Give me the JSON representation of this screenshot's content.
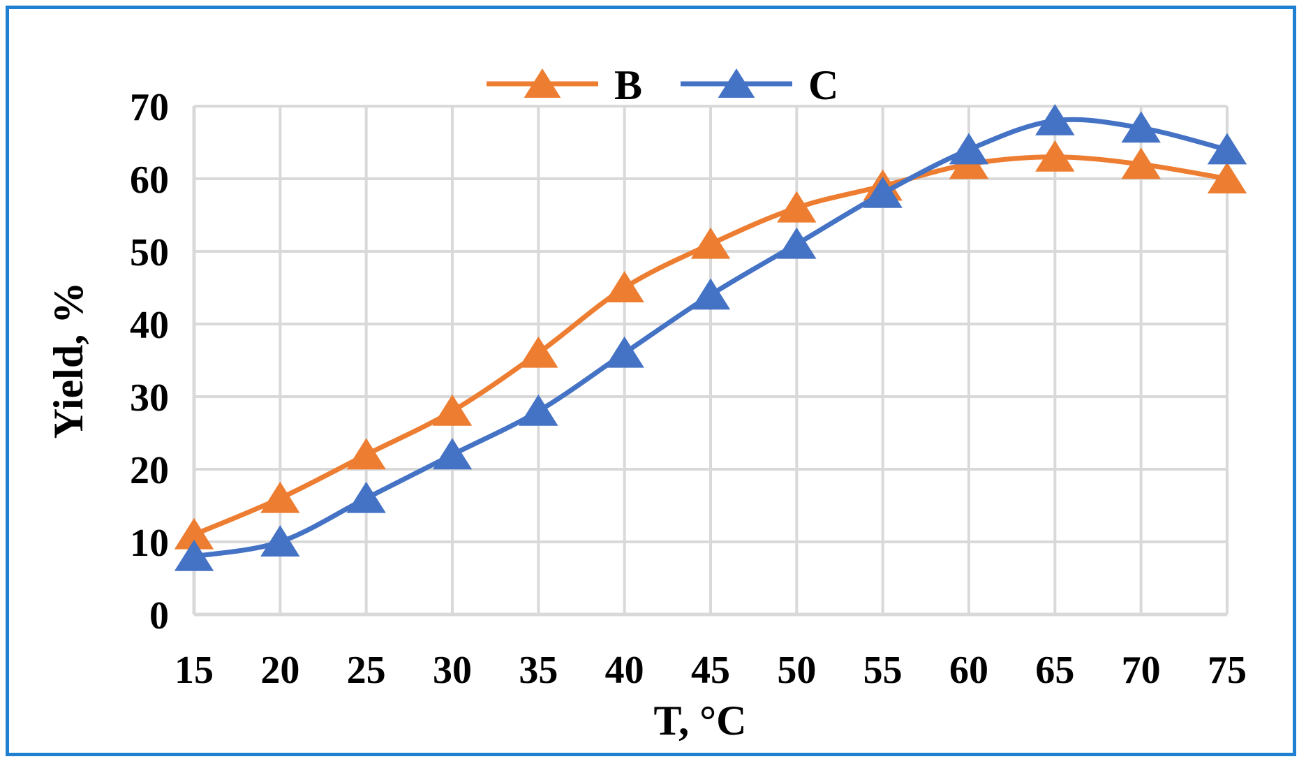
{
  "chart_data": {
    "type": "line",
    "title": "",
    "xlabel": "T, °C",
    "ylabel": "Yield, %",
    "categories": [
      "15",
      "20",
      "25",
      "30",
      "35",
      "40",
      "45",
      "50",
      "55",
      "60",
      "65",
      "70",
      "75"
    ],
    "x": [
      15,
      20,
      25,
      30,
      35,
      40,
      45,
      50,
      55,
      60,
      65,
      70,
      75
    ],
    "series": [
      {
        "name": "B",
        "color": "#ed7d31",
        "marker": "triangle",
        "values": [
          11,
          16,
          22,
          28,
          36,
          45,
          51,
          56,
          59,
          62,
          63,
          62,
          60
        ]
      },
      {
        "name": "C",
        "color": "#4472c4",
        "marker": "triangle",
        "values": [
          8,
          10,
          16,
          22,
          28,
          36,
          44,
          51,
          58,
          64,
          68,
          67,
          64
        ]
      }
    ],
    "yticks": [
      "0",
      "10",
      "20",
      "30",
      "40",
      "50",
      "60",
      "70"
    ],
    "ylim": [
      0,
      70
    ],
    "xlim": [
      15,
      75
    ],
    "grid": true,
    "smooth": true,
    "legend_position": "top",
    "frame_color": "#1f7fd0",
    "grid_color": "#d9d9d9"
  }
}
